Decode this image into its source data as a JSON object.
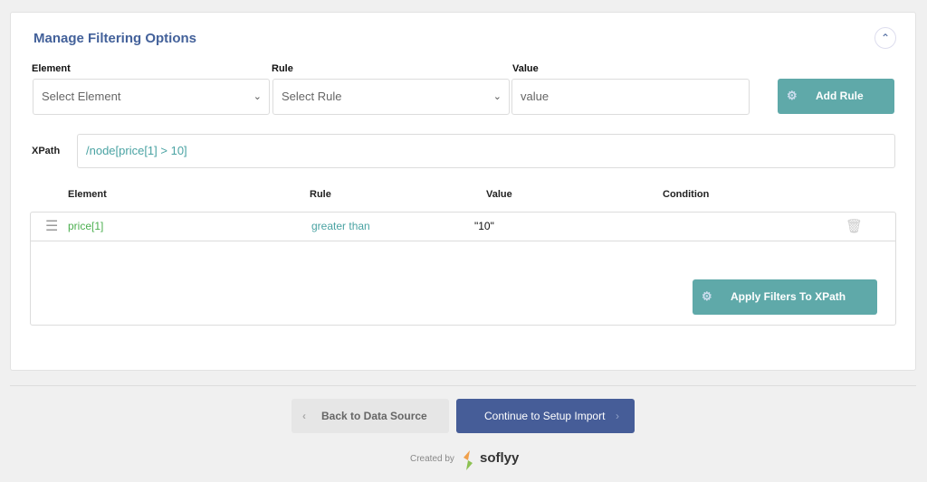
{
  "panel": {
    "title": "Manage Filtering Options"
  },
  "form": {
    "element_label": "Element",
    "element_placeholder": "Select Element",
    "rule_label": "Rule",
    "rule_placeholder": "Select Rule",
    "value_label": "Value",
    "value_placeholder": "value",
    "add_rule": "Add Rule"
  },
  "xpath": {
    "label": "XPath",
    "value": "/node[price[1] > 10]"
  },
  "table": {
    "headers": [
      "Element",
      "Rule",
      "Value",
      "Condition"
    ],
    "rows": [
      {
        "element": "price[1]",
        "rule": "greater than",
        "value": "\"10\"",
        "condition": ""
      }
    ],
    "apply": "Apply Filters To XPath"
  },
  "nav": {
    "back": "Back to Data Source",
    "continue": "Continue to Setup Import"
  },
  "footer": {
    "created_by": "Created by",
    "brand": "soflyy"
  },
  "colors": {
    "accent": "#43619a",
    "teal": "#5fa9a9",
    "primary_button": "#465d98",
    "green": "#4caf50"
  }
}
